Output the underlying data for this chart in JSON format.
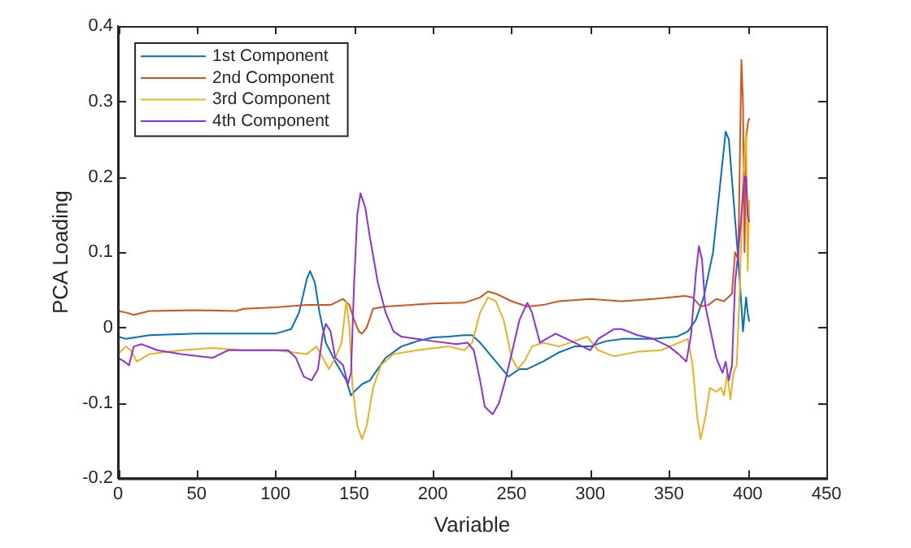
{
  "chart_data": {
    "type": "line",
    "xlabel": "Variable",
    "ylabel": "PCA Loading",
    "xlim": [
      0,
      450
    ],
    "xticks": [
      0,
      50,
      100,
      150,
      200,
      250,
      300,
      350,
      400,
      450
    ],
    "ylim": [
      -0.2,
      0.4
    ],
    "yticks": [
      -0.2,
      -0.1,
      0,
      0.1,
      0.2,
      0.3,
      0.4
    ],
    "grid": false,
    "legend": "top left",
    "marker": "none",
    "line_style": "solid",
    "series": [
      {
        "name": "1st Component",
        "color": "#0072bd",
        "x": [
          0,
          5,
          20,
          50,
          100,
          110,
          115,
          120,
          122,
          125,
          128,
          132,
          138,
          145,
          148,
          150,
          155,
          160,
          165,
          170,
          180,
          190,
          200,
          210,
          220,
          225,
          230,
          240,
          248,
          255,
          260,
          270,
          280,
          290,
          300,
          310,
          320,
          340,
          355,
          362,
          367,
          372,
          378,
          383,
          386,
          388,
          391,
          394,
          396,
          397,
          399,
          400,
          401
        ],
        "values": [
          -0.012,
          -0.015,
          -0.01,
          -0.008,
          -0.008,
          -0.002,
          0.02,
          0.065,
          0.075,
          0.06,
          0.02,
          -0.02,
          -0.045,
          -0.07,
          -0.09,
          -0.085,
          -0.075,
          -0.07,
          -0.055,
          -0.04,
          -0.025,
          -0.018,
          -0.013,
          -0.012,
          -0.01,
          -0.01,
          -0.02,
          -0.045,
          -0.065,
          -0.055,
          -0.055,
          -0.045,
          -0.033,
          -0.025,
          -0.025,
          -0.018,
          -0.015,
          -0.015,
          -0.012,
          -0.005,
          0.01,
          0.04,
          0.1,
          0.2,
          0.26,
          0.25,
          0.17,
          0.09,
          0.03,
          -0.005,
          0.04,
          0.02,
          0.008
        ]
      },
      {
        "name": "2nd Component",
        "color": "#d95319",
        "x": [
          0,
          5,
          10,
          20,
          50,
          75,
          80,
          100,
          120,
          135,
          143,
          147,
          150,
          153,
          155,
          158,
          162,
          170,
          200,
          220,
          230,
          235,
          240,
          250,
          260,
          270,
          280,
          300,
          320,
          340,
          360,
          365,
          370,
          375,
          380,
          385,
          390,
          392,
          394,
          396,
          397,
          398,
          399,
          400,
          401
        ],
        "values": [
          0.022,
          0.02,
          0.017,
          0.022,
          0.023,
          0.022,
          0.025,
          0.027,
          0.03,
          0.03,
          0.038,
          0.03,
          0.01,
          -0.005,
          -0.008,
          0,
          0.025,
          0.028,
          0.032,
          0.033,
          0.04,
          0.048,
          0.045,
          0.035,
          0.028,
          0.03,
          0.035,
          0.038,
          0.035,
          0.038,
          0.042,
          0.04,
          0.028,
          0.03,
          0.038,
          0.035,
          0.045,
          0.1,
          0.09,
          0.355,
          0.3,
          0.1,
          0.25,
          0.27,
          0.278
        ]
      },
      {
        "name": "3rd Component",
        "color": "#edb120",
        "x": [
          0,
          5,
          8,
          12,
          20,
          40,
          60,
          80,
          100,
          120,
          126,
          130,
          134,
          138,
          142,
          145,
          147,
          149,
          152,
          155,
          158,
          162,
          167,
          175,
          190,
          210,
          220,
          225,
          230,
          235,
          240,
          245,
          250,
          254,
          258,
          263,
          270,
          280,
          290,
          298,
          305,
          315,
          330,
          345,
          362,
          365,
          368,
          370,
          373,
          376,
          380,
          383,
          385,
          387,
          389,
          391,
          393,
          395,
          397,
          399,
          400,
          401
        ],
        "values": [
          -0.035,
          -0.025,
          -0.03,
          -0.045,
          -0.035,
          -0.03,
          -0.027,
          -0.03,
          -0.03,
          -0.035,
          -0.025,
          -0.04,
          -0.055,
          -0.04,
          -0.02,
          0.035,
          0,
          -0.08,
          -0.13,
          -0.148,
          -0.13,
          -0.08,
          -0.05,
          -0.035,
          -0.03,
          -0.025,
          -0.03,
          -0.02,
          0.02,
          0.04,
          0.035,
          0.01,
          -0.04,
          -0.055,
          -0.045,
          -0.025,
          -0.02,
          -0.025,
          -0.018,
          -0.012,
          -0.03,
          -0.038,
          -0.032,
          -0.03,
          -0.015,
          -0.05,
          -0.12,
          -0.148,
          -0.12,
          -0.08,
          -0.085,
          -0.08,
          -0.09,
          -0.06,
          -0.095,
          -0.06,
          -0.05,
          0.05,
          0.2,
          0.26,
          0.075,
          0.17
        ]
      },
      {
        "name": "4th Component",
        "color": "#8e2fe0",
        "x": [
          0,
          4,
          7,
          10,
          15,
          25,
          40,
          60,
          70,
          90,
          108,
          113,
          118,
          123,
          127,
          130,
          132,
          135,
          138,
          143,
          146,
          148,
          150,
          152,
          154,
          157,
          160,
          165,
          170,
          175,
          180,
          190,
          200,
          215,
          222,
          226,
          230,
          233,
          238,
          242,
          246,
          250,
          255,
          260,
          263,
          268,
          272,
          278,
          285,
          295,
          300,
          305,
          315,
          320,
          330,
          340,
          350,
          356,
          361,
          364,
          367,
          369,
          371,
          373,
          377,
          380,
          382,
          384,
          386,
          388,
          390,
          392,
          394,
          396,
          398,
          399,
          400,
          401
        ],
        "values": [
          -0.04,
          -0.045,
          -0.05,
          -0.025,
          -0.022,
          -0.03,
          -0.035,
          -0.04,
          -0.03,
          -0.03,
          -0.03,
          -0.04,
          -0.065,
          -0.07,
          -0.055,
          -0.01,
          0.005,
          -0.005,
          -0.04,
          -0.05,
          -0.075,
          -0.06,
          0.06,
          0.15,
          0.178,
          0.16,
          0.12,
          0.06,
          0.02,
          -0.005,
          -0.012,
          -0.015,
          -0.018,
          -0.022,
          -0.02,
          -0.03,
          -0.07,
          -0.105,
          -0.115,
          -0.1,
          -0.07,
          -0.035,
          0.01,
          0.033,
          0.02,
          -0.02,
          -0.015,
          -0.008,
          -0.015,
          -0.025,
          -0.03,
          -0.015,
          -0.002,
          -0.002,
          -0.01,
          -0.015,
          -0.025,
          -0.035,
          -0.045,
          -0.01,
          0.07,
          0.108,
          0.09,
          0.03,
          -0.01,
          -0.04,
          -0.05,
          -0.06,
          -0.045,
          -0.07,
          -0.05,
          0.06,
          0.1,
          0.15,
          0.2,
          0.2,
          0.15,
          0.14
        ]
      }
    ]
  }
}
